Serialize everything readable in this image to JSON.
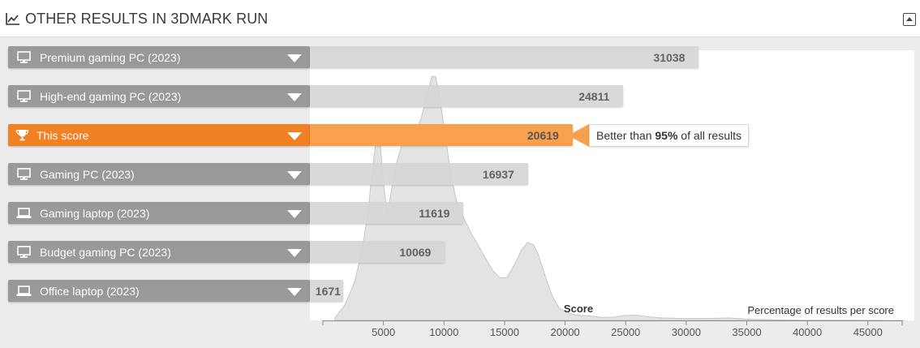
{
  "header": {
    "title": "OTHER RESULTS IN 3DMARK RUN"
  },
  "rows": [
    {
      "label": "Premium gaming PC (2023)",
      "score": 31038,
      "score_text": "31038",
      "icon": "desktop-icon",
      "highlight": false
    },
    {
      "label": "High-end gaming PC (2023)",
      "score": 24811,
      "score_text": "24811",
      "icon": "desktop-icon",
      "highlight": false
    },
    {
      "label": "This score",
      "score": 20619,
      "score_text": "20619",
      "icon": "trophy-icon",
      "highlight": true
    },
    {
      "label": "Gaming PC (2023)",
      "score": 16937,
      "score_text": "16937",
      "icon": "desktop-icon",
      "highlight": false
    },
    {
      "label": "Gaming laptop (2023)",
      "score": 11619,
      "score_text": "11619",
      "icon": "laptop-icon",
      "highlight": false
    },
    {
      "label": "Budget gaming PC (2023)",
      "score": 10069,
      "score_text": "10069",
      "icon": "desktop-icon",
      "highlight": false
    },
    {
      "label": "Office laptop (2023)",
      "score": 1671,
      "score_text": "1671",
      "icon": "laptop-icon",
      "highlight": false
    }
  ],
  "callout": {
    "prefix": "Better than ",
    "percent": "95%",
    "suffix": " of all results"
  },
  "colors": {
    "highlight": "#f08124",
    "highlight_bar": "#f9a04f",
    "row_label": "#999999",
    "row_bar": "#d6d6d6",
    "density_fill": "#e3e3e3"
  },
  "chart_data": {
    "type": "area",
    "xlabel": "Score",
    "ylabel": "Percentage of results per score",
    "xlim": [
      0,
      48000
    ],
    "x_ticks": [
      5000,
      10000,
      15000,
      20000,
      25000,
      30000,
      35000,
      40000,
      45000
    ],
    "x_tick_labels": [
      "5000",
      "10000",
      "15000",
      "20000",
      "25000",
      "30000",
      "35000",
      "40000",
      "45000"
    ],
    "density": {
      "x": [
        1000,
        1800,
        2600,
        3200,
        3700,
        4100,
        4400,
        4700,
        5000,
        5300,
        5600,
        6100,
        6600,
        7100,
        7600,
        8100,
        8600,
        9000,
        9300,
        9600,
        10000,
        10500,
        11000,
        11600,
        12200,
        12800,
        13400,
        14000,
        14600,
        15200,
        15800,
        16400,
        16900,
        17400,
        17800,
        18200,
        18600,
        19000,
        19500,
        20000,
        20600,
        21200,
        22000,
        23000,
        24000,
        25000,
        26000,
        27000,
        28000,
        30000,
        32000,
        33500,
        35000,
        37000,
        40000,
        44000,
        48000
      ],
      "y": [
        0.01,
        0.06,
        0.15,
        0.27,
        0.42,
        0.6,
        0.72,
        0.72,
        0.55,
        0.42,
        0.5,
        0.63,
        0.71,
        0.74,
        0.75,
        0.8,
        0.9,
        0.97,
        0.97,
        0.9,
        0.77,
        0.6,
        0.48,
        0.41,
        0.35,
        0.3,
        0.25,
        0.2,
        0.17,
        0.17,
        0.22,
        0.28,
        0.31,
        0.3,
        0.26,
        0.2,
        0.14,
        0.09,
        0.05,
        0.035,
        0.025,
        0.02,
        0.018,
        0.012,
        0.013,
        0.02,
        0.02,
        0.014,
        0.01,
        0.007,
        0.008,
        0.01,
        0.005,
        0.003,
        0.001,
        0.0005,
        0
      ]
    },
    "bars": [
      {
        "name": "Premium gaming PC (2023)",
        "value": 31038
      },
      {
        "name": "High-end gaming PC (2023)",
        "value": 24811
      },
      {
        "name": "This score",
        "value": 20619
      },
      {
        "name": "Gaming PC (2023)",
        "value": 16937
      },
      {
        "name": "Gaming laptop (2023)",
        "value": 11619
      },
      {
        "name": "Budget gaming PC (2023)",
        "value": 10069
      },
      {
        "name": "Office laptop (2023)",
        "value": 1671
      }
    ]
  }
}
